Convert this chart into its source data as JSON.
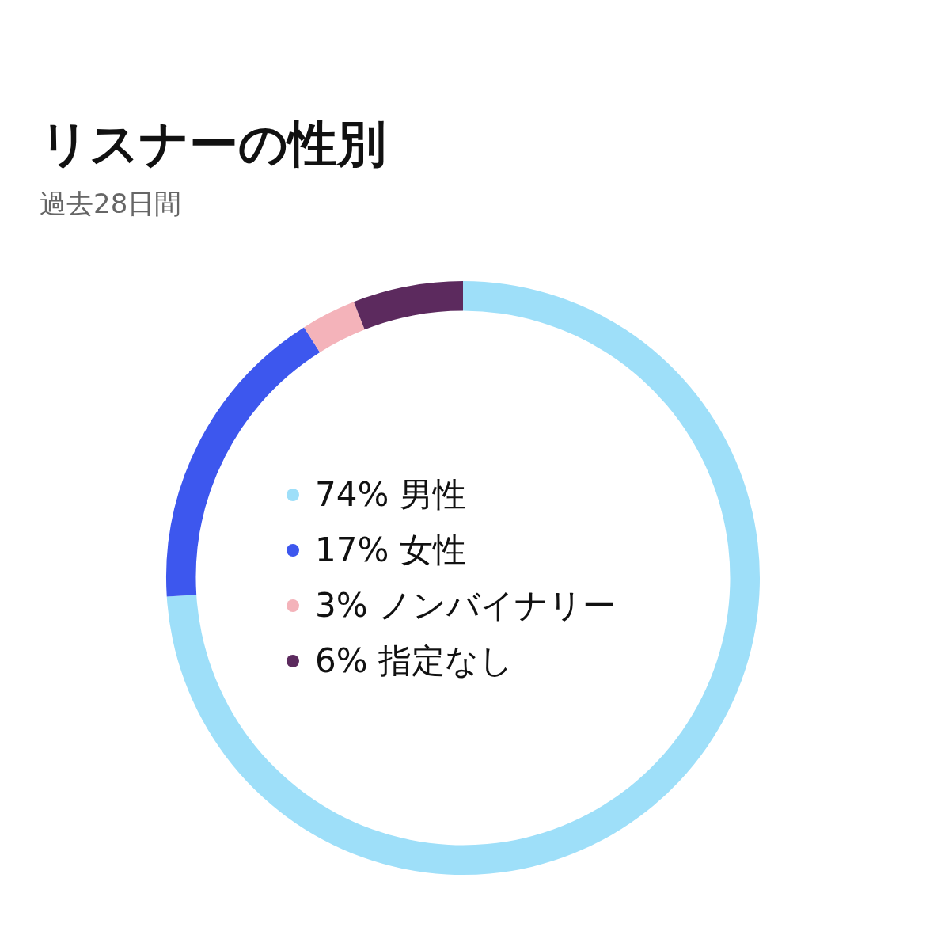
{
  "chart_data": {
    "type": "donut",
    "title": "リスナーの性別",
    "subtitle": "過去28日間",
    "categories": [
      "男性",
      "女性",
      "ノンバイナリー",
      "指定なし"
    ],
    "values": [
      74,
      17,
      3,
      6
    ],
    "colors": [
      "#9edff9",
      "#3d57ee",
      "#f4b3ba",
      "#5c2a5e"
    ],
    "value_labels": [
      "74%",
      "17%",
      "3%",
      "6%"
    ],
    "legend": "center"
  }
}
